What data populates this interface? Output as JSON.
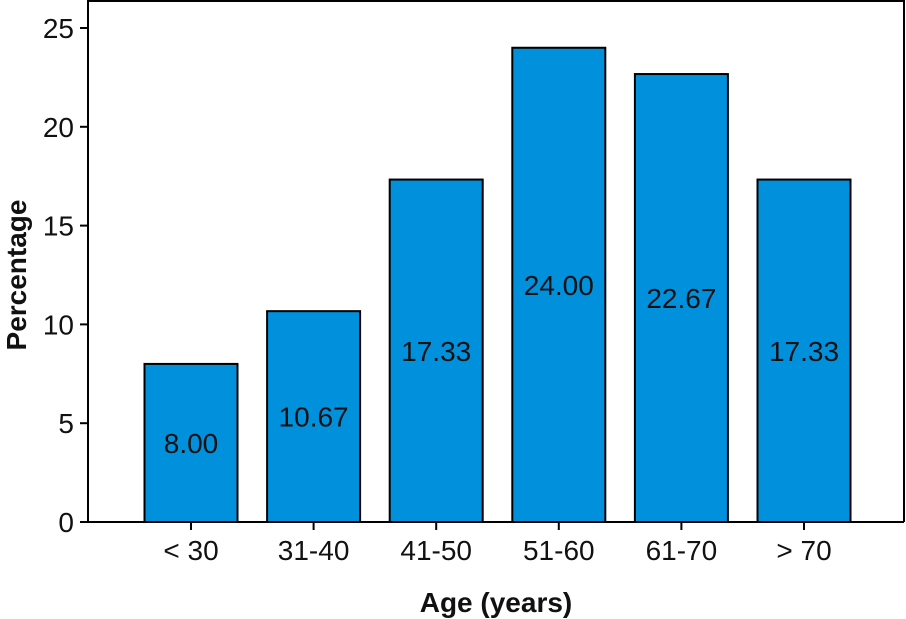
{
  "chart_data": {
    "type": "bar",
    "categories": [
      "< 30",
      "31-40",
      "41-50",
      "51-60",
      "61-70",
      "> 70"
    ],
    "values": [
      8.0,
      10.67,
      17.33,
      24.0,
      22.67,
      17.33
    ],
    "data_labels": [
      "8.00",
      "10.67",
      "17.33",
      "24.00",
      "22.67",
      "17.33"
    ],
    "title": "",
    "xlabel": "Age (years)",
    "ylabel": "Percentage",
    "ylim": [
      0,
      25
    ],
    "yticks": [
      0,
      5,
      10,
      15,
      20,
      25
    ],
    "grid": false,
    "bar_color": "#0090dc",
    "bar_edge_color": "#000000"
  }
}
